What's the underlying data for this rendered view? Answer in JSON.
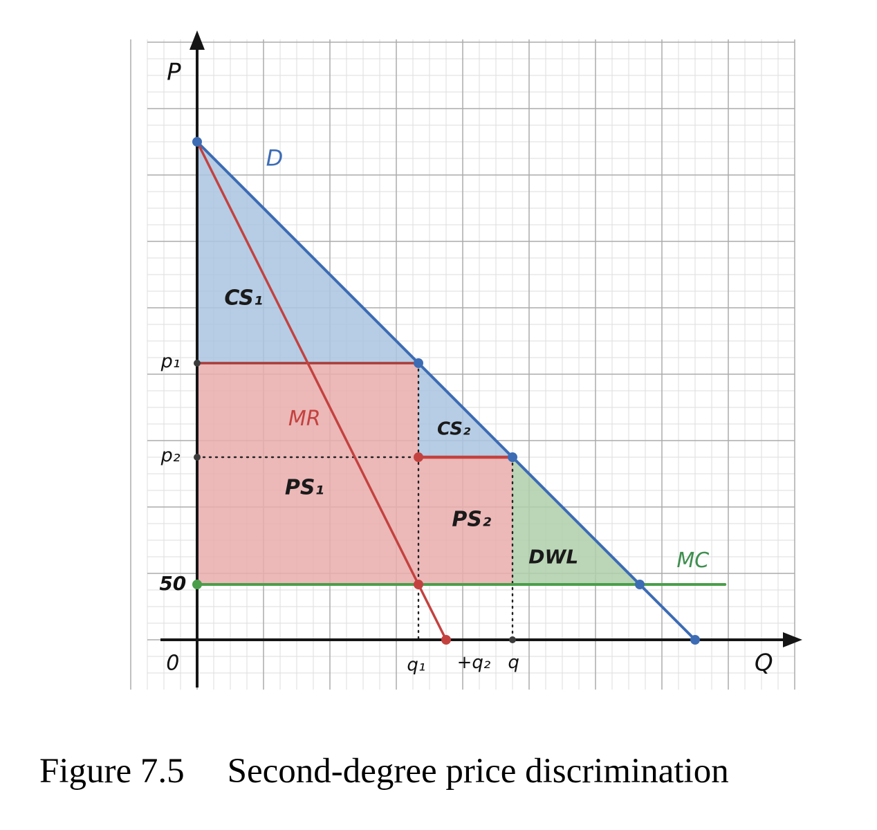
{
  "figure": {
    "caption_label": "Figure 7.5",
    "caption_text": "Second-degree price discrimination"
  },
  "chart_data": {
    "type": "line",
    "title": "Second-degree price discrimination",
    "xlabel": "Q",
    "ylabel": "P",
    "x_range": [
      -45,
      535
    ],
    "y_range": [
      -42,
      548
    ],
    "grid": true,
    "legend": "none",
    "model": {
      "demand": "P = 450 - Q",
      "marginal_revenue": "P = 450 - 2Q",
      "marginal_cost": 50,
      "p1": 250,
      "p2": 165,
      "q1": 200,
      "q2": 85,
      "q_total": 285,
      "demand_mc_intersection_q": 400,
      "demand_x_intercept": 450,
      "mr_x_intercept": 225
    },
    "series": [
      {
        "name": "D",
        "color": "#3d6cb4",
        "width": 4,
        "points": [
          [
            0,
            450
          ],
          [
            450,
            0
          ]
        ]
      },
      {
        "name": "MR",
        "color": "#c3423f",
        "width": 3.5,
        "points": [
          [
            0,
            450
          ],
          [
            225,
            0
          ]
        ]
      },
      {
        "name": "MC",
        "color": "#4a9e4a",
        "width": 4,
        "points": [
          [
            0,
            50
          ],
          [
            477,
            50
          ]
        ]
      }
    ],
    "price_lines": [
      {
        "name": "p1-line",
        "color": "#a83c39",
        "width": 3.5,
        "from": [
          0,
          250
        ],
        "to": [
          200,
          250
        ]
      },
      {
        "name": "p2-red-segment",
        "color": "#c3423f",
        "width": 4.5,
        "from": [
          200,
          165
        ],
        "to": [
          285,
          165
        ]
      }
    ],
    "guides": [
      {
        "name": "p2-dotted",
        "color": "#222222",
        "from": [
          0,
          165
        ],
        "to": [
          200,
          165
        ]
      },
      {
        "name": "q1-dotted",
        "color": "#222222",
        "from": [
          200,
          250
        ],
        "to": [
          200,
          0
        ]
      },
      {
        "name": "q-total-dotted",
        "color": "#222222",
        "from": [
          285,
          165
        ],
        "to": [
          285,
          0
        ]
      }
    ],
    "regions": [
      {
        "name": "CS1",
        "label": "CS₁",
        "color": "#a9c4e1",
        "opacity": 0.85,
        "vertices": [
          [
            0,
            450
          ],
          [
            200,
            250
          ],
          [
            0,
            250
          ]
        ]
      },
      {
        "name": "CS2",
        "label": "CS₂",
        "color": "#a9c4e1",
        "opacity": 0.85,
        "vertices": [
          [
            200,
            250
          ],
          [
            285,
            165
          ],
          [
            200,
            165
          ]
        ]
      },
      {
        "name": "PS1",
        "label": "PS₁",
        "color": "#e9abab",
        "opacity": 0.85,
        "vertices": [
          [
            0,
            250
          ],
          [
            200,
            250
          ],
          [
            200,
            50
          ],
          [
            0,
            50
          ]
        ]
      },
      {
        "name": "PS2",
        "label": "PS₂",
        "color": "#e9abab",
        "opacity": 0.85,
        "vertices": [
          [
            200,
            165
          ],
          [
            285,
            165
          ],
          [
            285,
            50
          ],
          [
            200,
            50
          ]
        ]
      },
      {
        "name": "DWL",
        "label": "DWL",
        "color": "#aecfaa",
        "opacity": 0.85,
        "vertices": [
          [
            285,
            165
          ],
          [
            400,
            50
          ],
          [
            285,
            50
          ]
        ]
      }
    ],
    "points": [
      {
        "name": "demand-y-intercept",
        "q": 0,
        "p": 450,
        "color": "#3d6cb4",
        "r": 7
      },
      {
        "name": "q1-p1",
        "q": 200,
        "p": 250,
        "color": "#3d6cb4",
        "r": 7
      },
      {
        "name": "q-p2",
        "q": 285,
        "p": 165,
        "color": "#3d6cb4",
        "r": 7
      },
      {
        "name": "demand-mc-cross",
        "q": 400,
        "p": 50,
        "color": "#3d6cb4",
        "r": 7
      },
      {
        "name": "demand-x-intercept",
        "q": 450,
        "p": 0,
        "color": "#3d6cb4",
        "r": 7
      },
      {
        "name": "q1-p2",
        "q": 200,
        "p": 165,
        "color": "#c3423f",
        "r": 7
      },
      {
        "name": "mr-mc-cross",
        "q": 200,
        "p": 50,
        "color": "#c3423f",
        "r": 7
      },
      {
        "name": "mr-x-intercept",
        "q": 225,
        "p": 0,
        "color": "#c3423f",
        "r": 7
      },
      {
        "name": "mc-y-intercept",
        "q": 0,
        "p": 50,
        "color": "#4a9e4a",
        "r": 7
      },
      {
        "name": "p1-on-axis",
        "q": 0,
        "p": 250,
        "color": "#3c3c3c",
        "r": 5
      },
      {
        "name": "p2-on-axis",
        "q": 0,
        "p": 165,
        "color": "#3c3c3c",
        "r": 5
      },
      {
        "name": "q-on-axis",
        "q": 285,
        "p": 0,
        "color": "#3c3c3c",
        "r": 5
      }
    ],
    "labels": [
      {
        "id": "ylabel",
        "text": "P",
        "q": -21,
        "p": 512,
        "color": "#111111",
        "size": 34,
        "italic": true,
        "bold": false
      },
      {
        "id": "xlabel",
        "text": "Q",
        "q": 512,
        "p": -22,
        "color": "#111111",
        "size": 34,
        "italic": true,
        "bold": false
      },
      {
        "id": "origin",
        "text": "0",
        "q": -22,
        "p": -22,
        "color": "#111111",
        "size": 30,
        "italic": true,
        "bold": false
      },
      {
        "id": "demand",
        "text": "D",
        "q": 70,
        "p": 434,
        "color": "#3d6cb4",
        "size": 32,
        "italic": true,
        "bold": false
      },
      {
        "id": "cs1",
        "text": "CS₁",
        "q": 42,
        "p": 308,
        "color": "#1a1a1a",
        "size": 30,
        "italic": true,
        "bold": true
      },
      {
        "id": "mr",
        "text": "MR",
        "q": 97,
        "p": 199,
        "color": "#c3423f",
        "size": 30,
        "italic": true,
        "bold": false
      },
      {
        "id": "cs2",
        "text": "CS₂",
        "q": 232,
        "p": 190,
        "color": "#1a1a1a",
        "size": 26,
        "italic": true,
        "bold": true
      },
      {
        "id": "p1",
        "text": "p₁",
        "q": -24,
        "p": 251,
        "color": "#111111",
        "size": 27,
        "italic": true,
        "bold": false
      },
      {
        "id": "p2",
        "text": "p₂",
        "q": -24,
        "p": 166,
        "color": "#111111",
        "size": 27,
        "italic": true,
        "bold": false
      },
      {
        "id": "ps1",
        "text": "PS₁",
        "q": 97,
        "p": 137,
        "color": "#1a1a1a",
        "size": 30,
        "italic": true,
        "bold": true
      },
      {
        "id": "ps2",
        "text": "PS₂",
        "q": 248,
        "p": 108,
        "color": "#1a1a1a",
        "size": 30,
        "italic": true,
        "bold": true
      },
      {
        "id": "dwl",
        "text": "DWL",
        "q": 322,
        "p": 74,
        "color": "#1a1a1a",
        "size": 28,
        "italic": true,
        "bold": true
      },
      {
        "id": "mc",
        "text": "MC",
        "q": 448,
        "p": 71,
        "color": "#3f8f4f",
        "size": 30,
        "italic": true,
        "bold": false
      },
      {
        "id": "mc-value",
        "text": "50",
        "q": -22,
        "p": 50,
        "color": "#111111",
        "size": 28,
        "italic": true,
        "bold": true
      },
      {
        "id": "q1",
        "text": "q₁",
        "q": 198,
        "p": -23,
        "color": "#111111",
        "size": 26,
        "italic": true,
        "bold": false
      },
      {
        "id": "q2",
        "text": "+q₂",
        "q": 250,
        "p": -21,
        "color": "#111111",
        "size": 26,
        "italic": true,
        "bold": false
      },
      {
        "id": "q-total",
        "text": "q",
        "q": 286,
        "p": -21,
        "color": "#111111",
        "size": 26,
        "italic": true,
        "bold": false
      }
    ]
  }
}
